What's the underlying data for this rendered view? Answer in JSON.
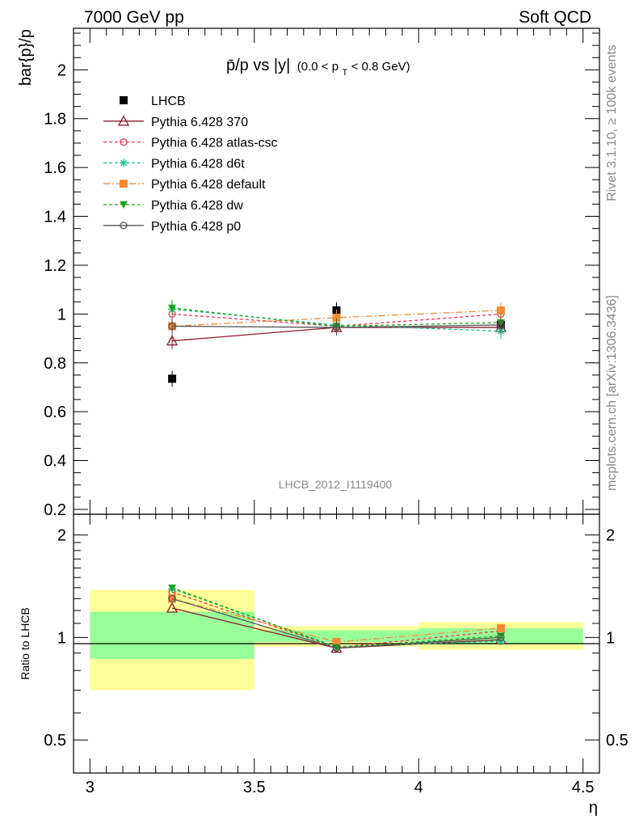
{
  "header": {
    "left": "7000 GeV pp",
    "right": "Soft QCD"
  },
  "side_text": {
    "rivet": "Rivet 3.1.10, ≥ 100k events",
    "mcplots": "mcplots.cern.ch [arXiv:1306.3436]"
  },
  "plot_title": {
    "main": "p̄/p vs |y|",
    "range": "(0.0 < p",
    "sub": "T",
    "range_end": " < 0.8 GeV)"
  },
  "analysis_label": "LHCB_2012_I1119400",
  "chart_data": [
    {
      "type": "scatter",
      "panel": "main",
      "ylabel": "bar{p}/p",
      "ylim": [
        0.18,
        2.17
      ],
      "xlim": [
        2.95,
        4.55
      ],
      "y_ticks": [
        "0.2",
        "0.4",
        "0.6",
        "0.8",
        "1",
        "1.2",
        "1.4",
        "1.6",
        "1.8",
        "2"
      ],
      "x": [
        3.25,
        3.75,
        4.25
      ],
      "legend_position": "top-left",
      "series": [
        {
          "name": "LHCB",
          "values": [
            0.735,
            1.015,
            0.955
          ],
          "color": "#000000",
          "marker": "square",
          "dash": "none",
          "line": false
        },
        {
          "name": "Pythia 6.428 370",
          "values": [
            0.89,
            0.945,
            0.945
          ],
          "color": "#8b1a2e",
          "marker": "triangle-open",
          "dash": "none",
          "line": true
        },
        {
          "name": "Pythia 6.428 atlas-csc",
          "values": [
            1.0,
            0.95,
            1.0
          ],
          "color": "#e8384f",
          "marker": "circle-open",
          "dash": "4,3",
          "line": true
        },
        {
          "name": "Pythia 6.428 d6t",
          "values": [
            1.02,
            0.955,
            0.93
          ],
          "color": "#19c08e",
          "marker": "star",
          "dash": "4,3",
          "line": true
        },
        {
          "name": "Pythia 6.428 default",
          "values": [
            0.95,
            0.985,
            1.015
          ],
          "color": "#f58a37",
          "marker": "square",
          "dash": "8,3,2,3",
          "line": true
        },
        {
          "name": "Pythia 6.428 dw",
          "values": [
            1.025,
            0.95,
            0.965
          ],
          "color": "#1aa51a",
          "marker": "triangle-down",
          "dash": "4,3",
          "line": true
        },
        {
          "name": "Pythia 6.428 p0",
          "values": [
            0.95,
            0.945,
            0.955
          ],
          "color": "#555555",
          "marker": "circle-open",
          "dash": "none",
          "line": true
        }
      ]
    },
    {
      "type": "line",
      "panel": "ratio",
      "ylabel": "Ratio to LHCB",
      "xlabel": "η",
      "scale": "log",
      "ylim": [
        0.4,
        2.3
      ],
      "xlim": [
        2.95,
        4.55
      ],
      "y_ticks": [
        "0.5",
        "1",
        "2"
      ],
      "x_ticks": [
        "3",
        "3.5",
        "4",
        "4.5"
      ],
      "x": [
        3.25,
        3.75,
        4.25
      ],
      "bands": [
        {
          "x0": 3.0,
          "x1": 3.5,
          "inner": [
            0.865,
            1.19
          ],
          "outer": [
            0.7,
            1.38
          ]
        },
        {
          "x0": 3.5,
          "x1": 4.0,
          "inner": [
            0.97,
            1.05
          ],
          "outer": [
            0.94,
            1.08
          ]
        },
        {
          "x0": 4.0,
          "x1": 4.5,
          "inner": [
            0.955,
            1.065
          ],
          "outer": [
            0.92,
            1.11
          ]
        }
      ],
      "series": [
        {
          "name": "Pythia 6.428 370",
          "values": [
            1.22,
            0.93,
            0.985
          ]
        },
        {
          "name": "Pythia 6.428 atlas-csc",
          "values": [
            1.36,
            0.935,
            1.045
          ]
        },
        {
          "name": "Pythia 6.428 d6t",
          "values": [
            1.39,
            0.94,
            0.975
          ]
        },
        {
          "name": "Pythia 6.428 default",
          "values": [
            1.3,
            0.97,
            1.065
          ]
        },
        {
          "name": "Pythia 6.428 dw",
          "values": [
            1.4,
            0.935,
            1.01
          ]
        },
        {
          "name": "Pythia 6.428 p0",
          "values": [
            1.3,
            0.93,
            1.0
          ]
        }
      ]
    }
  ]
}
